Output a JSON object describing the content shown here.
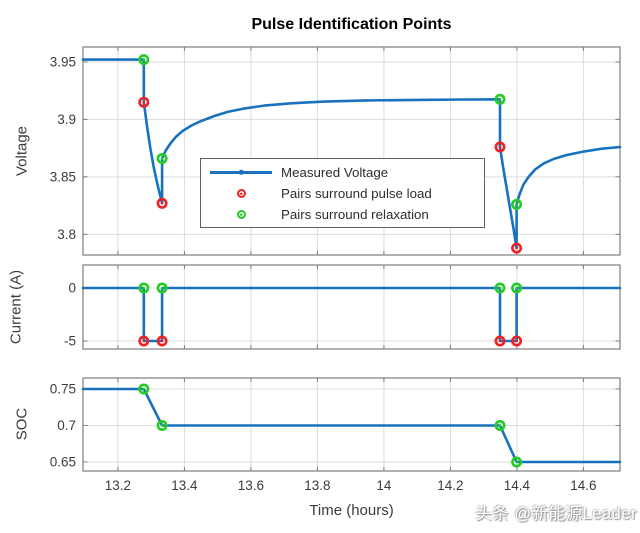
{
  "title": "Pulse Identification Points",
  "xlabel": "Time (hours)",
  "watermark": "头条 @新能源Leader",
  "colors": {
    "measured_line": "#1872bd",
    "pulse_load": "#ee2222",
    "relaxation": "#22cc22",
    "grid": "#dcdcdc",
    "frame": "#7d7d7d",
    "tick_text": "#3c3c3c"
  },
  "legend": {
    "entries": [
      {
        "label": "Measured Voltage",
        "swatch": "line-dot",
        "color": "blue"
      },
      {
        "label": "Pairs surround pulse load",
        "swatch": "circle",
        "color": "red"
      },
      {
        "label": "Pairs surround relaxation",
        "swatch": "circle",
        "color": "green"
      }
    ]
  },
  "chart_data": [
    {
      "id": "voltage",
      "type": "line",
      "ylabel": "Voltage",
      "xlim": [
        13.095,
        14.71
      ],
      "ylim": [
        3.782,
        3.963
      ],
      "xticks": [
        13.2,
        13.4,
        13.6,
        13.8,
        14,
        14.2,
        14.4,
        14.6
      ],
      "yticks": [
        3.8,
        3.85,
        3.9,
        3.95
      ],
      "ytick_labels": [
        "3.8",
        "3.85",
        "3.9",
        "3.95"
      ],
      "series": [
        {
          "name": "Measured Voltage",
          "color": "blue",
          "points": [
            [
              13.095,
              3.952
            ],
            [
              13.27,
              3.952
            ],
            [
              13.278,
              3.952
            ],
            [
              13.278,
              3.915
            ],
            [
              13.288,
              3.893
            ],
            [
              13.298,
              3.874
            ],
            [
              13.308,
              3.858
            ],
            [
              13.32,
              3.842
            ],
            [
              13.333,
              3.827
            ],
            [
              13.333,
              3.866
            ],
            [
              13.344,
              3.873
            ],
            [
              13.358,
              3.879
            ],
            [
              13.375,
              3.885
            ],
            [
              13.395,
              3.89
            ],
            [
              13.42,
              3.8945
            ],
            [
              13.45,
              3.8985
            ],
            [
              13.49,
              3.903
            ],
            [
              13.53,
              3.9065
            ],
            [
              13.58,
              3.9095
            ],
            [
              13.64,
              3.912
            ],
            [
              13.72,
              3.914
            ],
            [
              13.82,
              3.9155
            ],
            [
              13.95,
              3.9165
            ],
            [
              14.1,
              3.917
            ],
            [
              14.25,
              3.9173
            ],
            [
              14.349,
              3.9175
            ],
            [
              14.349,
              3.876
            ],
            [
              14.358,
              3.859
            ],
            [
              14.368,
              3.842
            ],
            [
              14.378,
              3.825
            ],
            [
              14.389,
              3.806
            ],
            [
              14.399,
              3.788
            ],
            [
              14.399,
              3.826
            ],
            [
              14.408,
              3.835
            ],
            [
              14.42,
              3.8435
            ],
            [
              14.435,
              3.85
            ],
            [
              14.455,
              3.8565
            ],
            [
              14.48,
              3.8615
            ],
            [
              14.51,
              3.8655
            ],
            [
              14.55,
              3.869
            ],
            [
              14.6,
              3.872
            ],
            [
              14.655,
              3.8745
            ],
            [
              14.71,
              3.876
            ]
          ]
        }
      ],
      "marker_sets": [
        {
          "name": "Pairs surround pulse load",
          "color": "red",
          "points": [
            [
              13.278,
              3.915
            ],
            [
              13.333,
              3.827
            ],
            [
              14.349,
              3.876
            ],
            [
              14.399,
              3.788
            ]
          ]
        },
        {
          "name": "Pairs surround relaxation",
          "color": "green",
          "points": [
            [
              13.278,
              3.952
            ],
            [
              13.333,
              3.866
            ],
            [
              14.349,
              3.9175
            ],
            [
              14.399,
              3.826
            ]
          ]
        }
      ]
    },
    {
      "id": "current",
      "type": "line",
      "ylabel": "Current (A)",
      "xlim": [
        13.095,
        14.71
      ],
      "ylim": [
        -5.75,
        2.17
      ],
      "xticks": [
        13.2,
        13.4,
        13.6,
        13.8,
        14,
        14.2,
        14.4,
        14.6
      ],
      "yticks": [
        0,
        -5
      ],
      "ytick_labels": [
        "0",
        "-5"
      ],
      "series": [
        {
          "name": "Current",
          "color": "blue",
          "points": [
            [
              13.095,
              0
            ],
            [
              13.278,
              0
            ],
            [
              13.278,
              -5
            ],
            [
              13.333,
              -5
            ],
            [
              13.333,
              0
            ],
            [
              14.349,
              0
            ],
            [
              14.349,
              -5
            ],
            [
              14.399,
              -5
            ],
            [
              14.399,
              0
            ],
            [
              14.71,
              0
            ]
          ]
        }
      ],
      "marker_sets": [
        {
          "name": "Pairs surround pulse load",
          "color": "red",
          "points": [
            [
              13.278,
              -5
            ],
            [
              13.333,
              -5
            ],
            [
              14.349,
              -5
            ],
            [
              14.399,
              -5
            ]
          ]
        },
        {
          "name": "Pairs surround relaxation",
          "color": "green",
          "points": [
            [
              13.278,
              0
            ],
            [
              13.333,
              0
            ],
            [
              14.349,
              0
            ],
            [
              14.399,
              0
            ]
          ]
        }
      ]
    },
    {
      "id": "soc",
      "type": "line",
      "ylabel": "SOC",
      "xlim": [
        13.095,
        14.71
      ],
      "ylim": [
        0.6377,
        0.765
      ],
      "xticks": [
        13.2,
        13.4,
        13.6,
        13.8,
        14,
        14.2,
        14.4,
        14.6
      ],
      "xtick_labels": [
        "13.2",
        "13.4",
        "13.6",
        "13.8",
        "14",
        "14.2",
        "14.4",
        "14.6"
      ],
      "yticks": [
        0.65,
        0.7,
        0.75
      ],
      "ytick_labels": [
        "0.65",
        "0.7",
        "0.75"
      ],
      "series": [
        {
          "name": "SOC",
          "color": "blue",
          "points": [
            [
              13.095,
              0.75
            ],
            [
              13.278,
              0.75
            ],
            [
              13.333,
              0.7
            ],
            [
              14.349,
              0.7
            ],
            [
              14.399,
              0.65
            ],
            [
              14.71,
              0.65
            ]
          ]
        }
      ],
      "marker_sets": [
        {
          "name": "Pairs surround relaxation",
          "color": "green",
          "points": [
            [
              13.278,
              0.75
            ],
            [
              13.333,
              0.7
            ],
            [
              14.349,
              0.7
            ],
            [
              14.399,
              0.65
            ]
          ]
        }
      ]
    }
  ]
}
